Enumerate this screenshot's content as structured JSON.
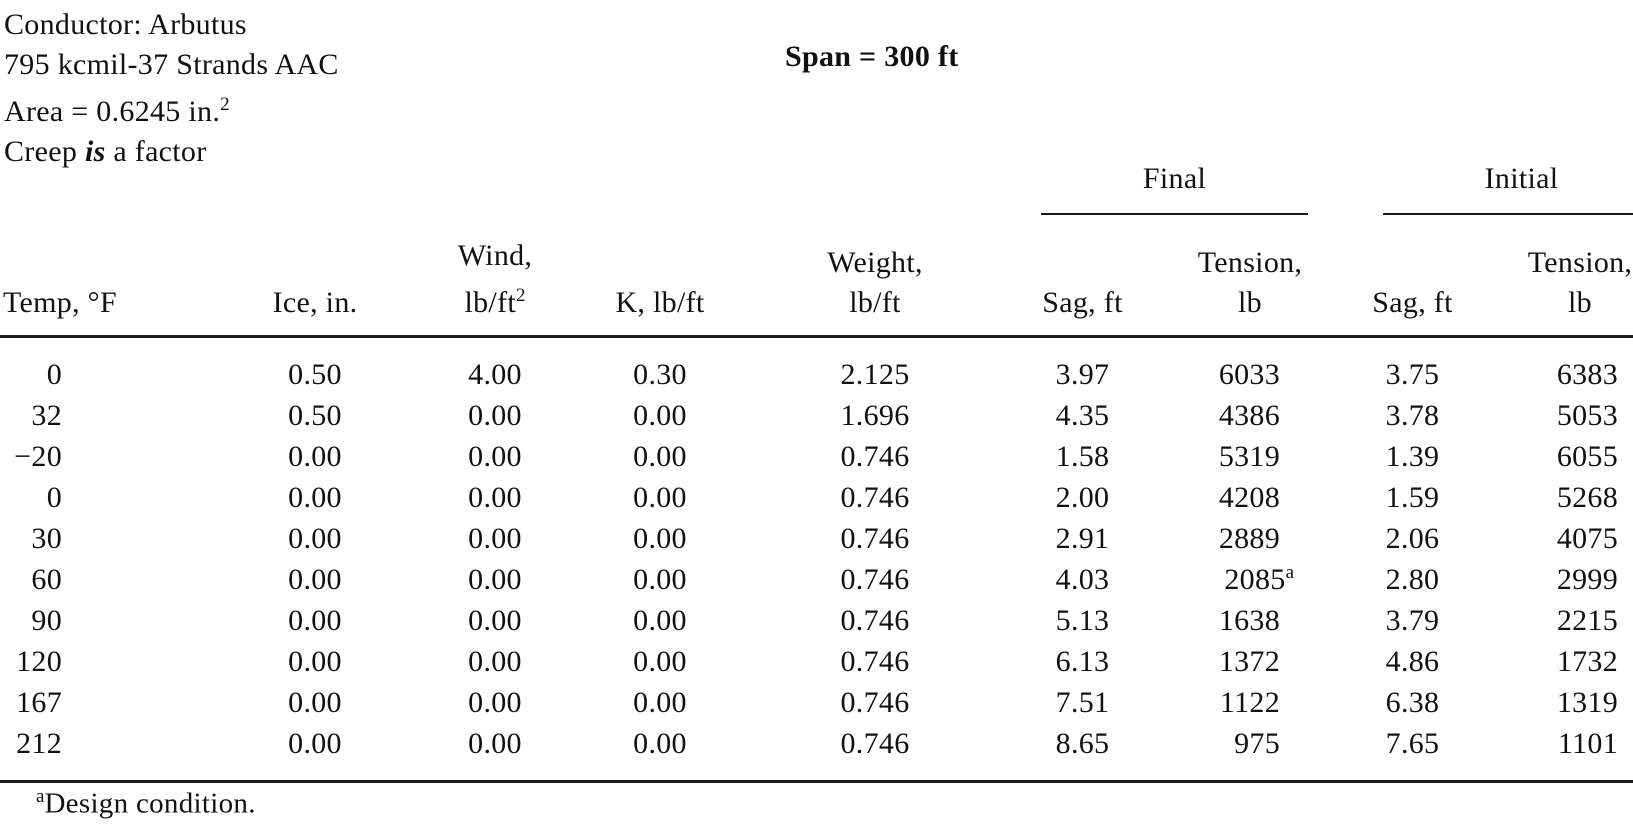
{
  "header": {
    "conductor_line": "Conductor: Arbutus",
    "strands_line": "795 kcmil-37 Strands AAC",
    "area_line": "Area = 0.6245 in.",
    "area_sup": "2",
    "creep_pre": "Creep ",
    "creep_emph": "is",
    "creep_post": " a factor",
    "span_line": "Span = 300 ft"
  },
  "table": {
    "spanner_final": "Final",
    "spanner_initial": "Initial",
    "col_headers": {
      "temp": "Temp, °F",
      "ice": "Ice, in.",
      "wind_top": "Wind,",
      "wind_bottom": "lb/ft",
      "wind_sup": "2",
      "k": "K, lb/ft",
      "weight_top": "Weight,",
      "weight_bottom": "lb/ft",
      "final_sag": "Sag, ft",
      "final_tension_top": "Tension,",
      "final_tension_bottom": "lb",
      "initial_sag": "Sag, ft",
      "initial_tension_top": "Tension,",
      "initial_tension_bottom": "lb"
    },
    "rows": [
      [
        "0",
        "0.50",
        "4.00",
        "0.30",
        "2.125",
        "3.97",
        "6033",
        "3.75",
        "6383"
      ],
      [
        "32",
        "0.50",
        "0.00",
        "0.00",
        "1.696",
        "4.35",
        "4386",
        "3.78",
        "5053"
      ],
      [
        "−20",
        "0.00",
        "0.00",
        "0.00",
        "0.746",
        "1.58",
        "5319",
        "1.39",
        "6055"
      ],
      [
        "0",
        "0.00",
        "0.00",
        "0.00",
        "0.746",
        "2.00",
        "4208",
        "1.59",
        "5268"
      ],
      [
        "30",
        "0.00",
        "0.00",
        "0.00",
        "0.746",
        "2.91",
        "2889",
        "2.06",
        "4075"
      ],
      [
        "60",
        "0.00",
        "0.00",
        "0.00",
        "0.746",
        "4.03",
        "2085^a",
        "2.80",
        "2999"
      ],
      [
        "90",
        "0.00",
        "0.00",
        "0.00",
        "0.746",
        "5.13",
        "1638",
        "3.79",
        "2215"
      ],
      [
        "120",
        "0.00",
        "0.00",
        "0.00",
        "0.746",
        "6.13",
        "1372",
        "4.86",
        "1732"
      ],
      [
        "167",
        "0.00",
        "0.00",
        "0.00",
        "0.746",
        "7.51",
        "1122",
        "6.38",
        "1319"
      ],
      [
        "212",
        "0.00",
        "0.00",
        "0.00",
        "0.746",
        "8.65",
        "975",
        "7.65",
        "1101"
      ]
    ]
  },
  "footnote": {
    "sup": "a",
    "text": "Design condition."
  }
}
